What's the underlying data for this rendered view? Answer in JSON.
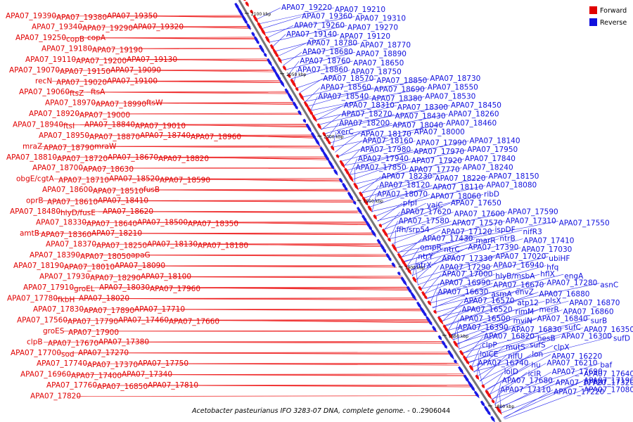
{
  "caption": {
    "organism": "Acetobacter pasteurianus IFO 3283-07 DNA, complete genome.",
    "range": " - 0..2906044"
  },
  "legend": {
    "forward_label": "Forward",
    "reverse_label": "Reverse",
    "forward_color": "#e00000",
    "reverse_color": "#1010dd"
  },
  "scale_labels": [
    "2100 kbp",
    "2050 kbp",
    "2000 kbp",
    "1950 kbp",
    "1900 kbp",
    "1850 kbp",
    "1800 kbp"
  ],
  "forward_labels": [
    "APA07_19390",
    "APA07_19380",
    "APA07_19350",
    "APA07_19340",
    "APA07_19290",
    "APA07_19320",
    "APA07_19250",
    "copB",
    "copA",
    "APA07_19180",
    "APA07_19190",
    "APA07_19110",
    "APA07_19200",
    "APA07_19130",
    "APA07_19070",
    "APA07_19150",
    "APA07_19090",
    "recN",
    "APA07_19020",
    "APA07_19100",
    "APA07_19060",
    "ftsZ",
    "ftsA",
    "APA07_18970",
    "APA07_18990",
    "ftsW",
    "APA07_18920",
    "APA07_19000",
    "APA07_18940",
    "ftsI",
    "APA07_18840",
    "APA07_19010",
    "APA07_18950",
    "APA07_18870",
    "APA07_18740",
    "APA07_18960",
    "mraZ",
    "APA07_18790",
    "mraW",
    "APA07_18810",
    "APA07_18720",
    "APA07_18670",
    "APA07_18820",
    "APA07_18700",
    "APA07_18630",
    "obgE/cgtA",
    "APA07_18710",
    "APA07_18520",
    "APA07_18590",
    "APA07_18600",
    "APA07_18510",
    "fusB",
    "oprB",
    "APA07_18610",
    "APA07_18410",
    "APA07_18480",
    "hlyD/fusE",
    "APA07_18620",
    "APA07_18330",
    "APA07_18640",
    "APA07_18500",
    "APA07_18350",
    "amtB",
    "APA07_18360",
    "APA07_18210",
    "APA07_18370",
    "APA07_18250",
    "APA07_18130",
    "APA07_18180",
    "APA07_18390",
    "APA07_18050",
    "apaG",
    "APA07_18190",
    "APA07_18010",
    "APA07_18090",
    "APA07_17930",
    "APA07_18290",
    "APA07_18100",
    "APA07_17910",
    "groEL",
    "APA07_18030",
    "APA07_17960",
    "APA07_17780",
    "fkbH",
    "APA07_18020",
    "APA07_17830",
    "APA07_17890",
    "APA07_17710",
    "APA07_17560",
    "APA07_17790",
    "APA07_17460",
    "APA07_17660",
    "groES",
    "APA07_17900",
    "clpB",
    "APA07_17670",
    "APA07_17380",
    "APA07_17700",
    "sod",
    "APA07_17270",
    "APA07_17740",
    "APA07_17370",
    "APA07_17750",
    "APA07_16960",
    "APA07_17400",
    "APA07_17340",
    "APA07_17760",
    "APA07_16850",
    "APA07_17810",
    "APA07_17820"
  ],
  "reverse_labels": [
    "APA07_19220",
    "APA07_19210",
    "APA07_19360",
    "APA07_19310",
    "APA07_19260",
    "APA07_19270",
    "APA07_19140",
    "APA07_19120",
    "APA07_18780",
    "APA07_18770",
    "APA07_18680",
    "APA07_18890",
    "APA07_18760",
    "APA07_18650",
    "APA07_18860",
    "APA07_18750",
    "APA07_18570",
    "APA07_18850",
    "APA07_18730",
    "APA07_18560",
    "APA07_18690",
    "APA07_18550",
    "APA07_18540",
    "APA07_18380",
    "APA07_18530",
    "APA07_18310",
    "APA07_18300",
    "APA07_18450",
    "APA07_18270",
    "APA07_18430",
    "APA07_18260",
    "APA07_18200",
    "APA07_18040",
    "APA07_18460",
    "xerC",
    "APA07_18170",
    "APA07_18000",
    "APA07_18160",
    "APA07_17990",
    "APA07_18140",
    "APA07_17980",
    "APA07_17970",
    "APA07_17950",
    "APA07_17940",
    "APA07_17920",
    "APA07_17840",
    "APA07_17850",
    "APA07_17770",
    "APA07_18240",
    "APA07_18230",
    "APA07_18220",
    "APA07_18150",
    "APA07_18120",
    "APA07_18110",
    "APA07_18080",
    "APA07_18070",
    "APA07_18060",
    "ribD",
    "pfpI",
    "yajC",
    "APA07_17650",
    "APA07_17620",
    "APA07_17600",
    "APA07_17590",
    "APA07_17580",
    "APA07_17570",
    "APA07_17310",
    "APA07_17550",
    "ffh/srp54",
    "APA07_17120",
    "ispDF",
    "nifR3",
    "APA07_17430",
    "marR",
    "ntrB",
    "APA07_17410",
    "ompR",
    "ntrC",
    "APA07_17390",
    "APA07_17030",
    "ntrY",
    "APA07_17330",
    "APA07_17020",
    "ubiHF",
    "ntrX",
    "APA07_17290",
    "APA07_16940",
    "hfq",
    "APA07_17000",
    "hlyB/msbA",
    "hflX",
    "engA",
    "APA07_16990",
    "APA07_16670",
    "APA07_17280",
    "asnC",
    "APA07_16630",
    "asmA",
    "envZ",
    "APA07_16880",
    "APA07_16570",
    "atp12",
    "plsX",
    "APA07_16870",
    "APA07_16520",
    "rimM",
    "merR",
    "APA07_16860",
    "APA07_16500",
    "mviN",
    "APA07_16840",
    "surB",
    "APA07_16390",
    "APA07_16830",
    "sufC",
    "APA07_16350",
    "APA07_16820",
    "hesB",
    "APA07_16300",
    "sufD",
    "clpP",
    "mutS",
    "sufS",
    "clpX",
    "lolCE",
    "nifU",
    "lon",
    "APA07_16220",
    "APA07_16740",
    "hu",
    "APA07_16210",
    "baf",
    "lolD",
    "iclR",
    "APA07_17690",
    "APA07_17640",
    "APA07_17680",
    "APA07_17720",
    "APA07_17190",
    "APA07_17320",
    "APA07_17110",
    "APA07_17220",
    "APA07_17080"
  ]
}
